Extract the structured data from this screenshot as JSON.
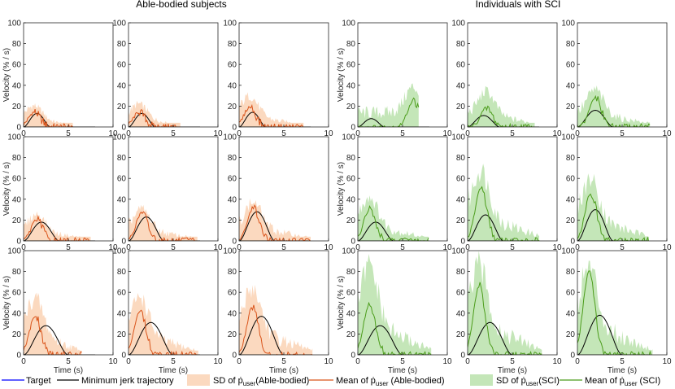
{
  "group_titles": {
    "left": "Able-bodied subjects",
    "right": "Individuals with SCI"
  },
  "axis_labels": {
    "x": "Time (s)",
    "y": "Velocity (% / s)"
  },
  "legend": {
    "target": "Target",
    "min_jerk": "Minimum jerk trajectory",
    "sd_ab": "SD of ṗ",
    "sd_ab_sub": "user",
    "sd_ab_tail": "(Able-bodied)",
    "mean_ab": "Mean of ṗ",
    "mean_ab_sub": "user",
    "mean_ab_tail": " (Able-bodied)",
    "sd_sci": "SD of ṗ",
    "sd_sci_sub": "user",
    "sd_sci_tail": "(SCI)",
    "mean_sci": "Mean of ṗ",
    "mean_sci_sub": "user",
    "mean_sci_tail": " (SCI)"
  },
  "colors": {
    "target": "#0000ff",
    "min_jerk": "#000000",
    "sd_ab": "#fbd9bf",
    "mean_ab": "#d95319",
    "sd_sci": "#c4e6b8",
    "mean_sci": "#4b9c1a"
  },
  "chart_data": {
    "type": "line",
    "grid": "3x6 small multiples",
    "xlim": [
      0,
      10
    ],
    "ylim": [
      0,
      100
    ],
    "xticks": [
      0,
      5,
      10
    ],
    "yticks": [
      0,
      20,
      40,
      60,
      80,
      100
    ],
    "panels": [
      {
        "group": "able-bodied",
        "row": 0,
        "col": 0,
        "minjerk": {
          "peak": 13,
          "t_peak": 1.5,
          "duration": 3.0
        },
        "mean": {
          "peak": 14,
          "t_peak": 1.2,
          "end": 5.5
        },
        "sd": {
          "upper": 24,
          "end": 5.5
        }
      },
      {
        "group": "able-bodied",
        "row": 0,
        "col": 1,
        "minjerk": {
          "peak": 13,
          "t_peak": 1.5,
          "duration": 3.0
        },
        "mean": {
          "peak": 14,
          "t_peak": 1.2,
          "end": 5.8
        },
        "sd": {
          "upper": 26,
          "end": 5.8
        }
      },
      {
        "group": "able-bodied",
        "row": 0,
        "col": 2,
        "minjerk": {
          "peak": 14,
          "t_peak": 1.5,
          "duration": 3.0
        },
        "mean": {
          "peak": 19,
          "t_peak": 1.2,
          "end": 7.2
        },
        "sd": {
          "upper": 35,
          "end": 7.2
        }
      },
      {
        "group": "SCI",
        "row": 0,
        "col": 3,
        "minjerk": {
          "peak": 8,
          "t_peak": 1.5,
          "duration": 3.0
        },
        "mean": {
          "peak": 25,
          "t_peak": 6.2,
          "end": 6.8
        },
        "sd": {
          "upper": 45,
          "end": 6.8
        }
      },
      {
        "group": "SCI",
        "row": 0,
        "col": 4,
        "minjerk": {
          "peak": 11,
          "t_peak": 1.8,
          "duration": 3.6
        },
        "mean": {
          "peak": 18,
          "t_peak": 2.1,
          "end": 7.5
        },
        "sd": {
          "upper": 40,
          "end": 7.5
        }
      },
      {
        "group": "SCI",
        "row": 0,
        "col": 5,
        "minjerk": {
          "peak": 16,
          "t_peak": 2.0,
          "duration": 4.0
        },
        "mean": {
          "peak": 28,
          "t_peak": 2.0,
          "end": 8.1
        },
        "sd": {
          "upper": 42,
          "end": 8.1
        }
      },
      {
        "group": "able-bodied",
        "row": 1,
        "col": 0,
        "minjerk": {
          "peak": 18,
          "t_peak": 2.0,
          "duration": 4.0
        },
        "mean": {
          "peak": 20,
          "t_peak": 1.5,
          "end": 7.5
        },
        "sd": {
          "upper": 30,
          "end": 7.5
        }
      },
      {
        "group": "able-bodied",
        "row": 1,
        "col": 1,
        "minjerk": {
          "peak": 23,
          "t_peak": 2.0,
          "duration": 4.0
        },
        "mean": {
          "peak": 27,
          "t_peak": 1.5,
          "end": 7.7
        },
        "sd": {
          "upper": 36,
          "end": 7.7
        }
      },
      {
        "group": "able-bodied",
        "row": 1,
        "col": 2,
        "minjerk": {
          "peak": 28,
          "t_peak": 2.0,
          "duration": 4.0
        },
        "mean": {
          "peak": 32,
          "t_peak": 1.6,
          "end": 8.0
        },
        "sd": {
          "upper": 44,
          "end": 8.0
        }
      },
      {
        "group": "SCI",
        "row": 1,
        "col": 3,
        "minjerk": {
          "peak": 18,
          "t_peak": 2.0,
          "duration": 4.0
        },
        "mean": {
          "peak": 30,
          "t_peak": 1.3,
          "end": 7.9
        },
        "sd": {
          "upper": 50,
          "end": 7.9
        }
      },
      {
        "group": "SCI",
        "row": 1,
        "col": 4,
        "minjerk": {
          "peak": 25,
          "t_peak": 2.0,
          "duration": 4.0
        },
        "mean": {
          "peak": 51,
          "t_peak": 1.5,
          "end": 8.0
        },
        "sd": {
          "upper": 80,
          "end": 8.0
        }
      },
      {
        "group": "SCI",
        "row": 1,
        "col": 5,
        "minjerk": {
          "peak": 30,
          "t_peak": 2.0,
          "duration": 4.0
        },
        "mean": {
          "peak": 46,
          "t_peak": 1.5,
          "end": 8.0
        },
        "sd": {
          "upper": 70,
          "end": 8.0
        }
      },
      {
        "group": "able-bodied",
        "row": 2,
        "col": 0,
        "minjerk": {
          "peak": 28,
          "t_peak": 2.5,
          "duration": 5.0
        },
        "mean": {
          "peak": 37,
          "t_peak": 1.3,
          "end": 6.5
        },
        "sd": {
          "upper": 64,
          "end": 6.5
        }
      },
      {
        "group": "able-bodied",
        "row": 2,
        "col": 1,
        "minjerk": {
          "peak": 31,
          "t_peak": 2.5,
          "duration": 5.0
        },
        "mean": {
          "peak": 42,
          "t_peak": 1.3,
          "end": 7.8
        },
        "sd": {
          "upper": 66,
          "end": 7.8
        }
      },
      {
        "group": "able-bodied",
        "row": 2,
        "col": 2,
        "minjerk": {
          "peak": 37,
          "t_peak": 2.5,
          "duration": 5.0
        },
        "mean": {
          "peak": 46,
          "t_peak": 1.5,
          "end": 8.2
        },
        "sd": {
          "upper": 76,
          "end": 8.2
        }
      },
      {
        "group": "SCI",
        "row": 2,
        "col": 3,
        "minjerk": {
          "peak": 28,
          "t_peak": 2.5,
          "duration": 5.0
        },
        "mean": {
          "peak": 49,
          "t_peak": 1.3,
          "end": 8.2
        },
        "sd": {
          "upper": 100,
          "end": 8.2
        }
      },
      {
        "group": "SCI",
        "row": 2,
        "col": 4,
        "minjerk": {
          "peak": 31,
          "t_peak": 2.5,
          "duration": 5.0
        },
        "mean": {
          "peak": 66,
          "t_peak": 1.3,
          "end": 8.3
        },
        "sd": {
          "upper": 100,
          "end": 8.3
        }
      },
      {
        "group": "SCI",
        "row": 2,
        "col": 5,
        "minjerk": {
          "peak": 38,
          "t_peak": 2.5,
          "duration": 5.0
        },
        "mean": {
          "peak": 80,
          "t_peak": 1.3,
          "end": 8.4
        },
        "sd": {
          "upper": 100,
          "end": 8.4
        }
      }
    ]
  }
}
